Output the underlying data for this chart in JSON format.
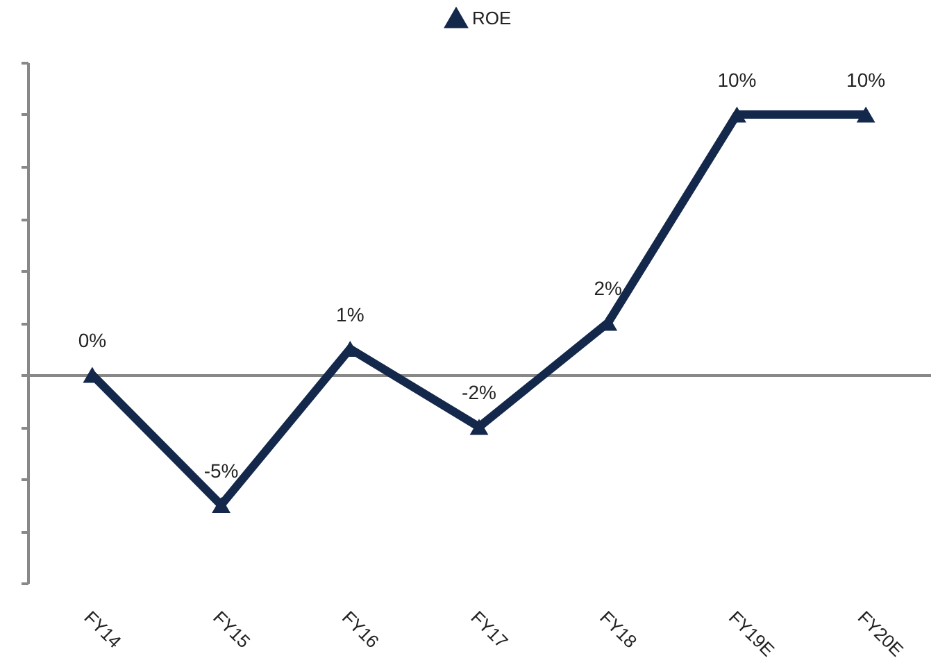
{
  "chart_data": {
    "type": "line",
    "categories": [
      "FY14",
      "FY15",
      "FY16",
      "FY17",
      "FY18",
      "FY19E",
      "FY20E"
    ],
    "series": [
      {
        "name": "ROE",
        "color": "#13284a",
        "values": [
          0,
          -5,
          1,
          -2,
          2,
          10,
          10
        ],
        "value_labels": [
          "0%",
          "-5%",
          "1%",
          "-2%",
          "2%",
          "10%",
          "10%"
        ]
      }
    ],
    "ylim": [
      -8,
      12
    ],
    "yticks": [
      {
        "value": -8,
        "label": null
      },
      {
        "value": -6,
        "label": null
      },
      {
        "value": -4,
        "label": null
      },
      {
        "value": -2,
        "label": null
      },
      {
        "value": 0,
        "label": null
      },
      {
        "value": 2,
        "label": null
      },
      {
        "value": 4,
        "label": null
      },
      {
        "value": 6,
        "label": null
      },
      {
        "value": 8,
        "label": null
      },
      {
        "value": 10,
        "label": null
      },
      {
        "value": 12,
        "label": null
      }
    ],
    "tick_labels": "x",
    "legend": "top",
    "marker": "triangle",
    "line_style": "solid"
  }
}
